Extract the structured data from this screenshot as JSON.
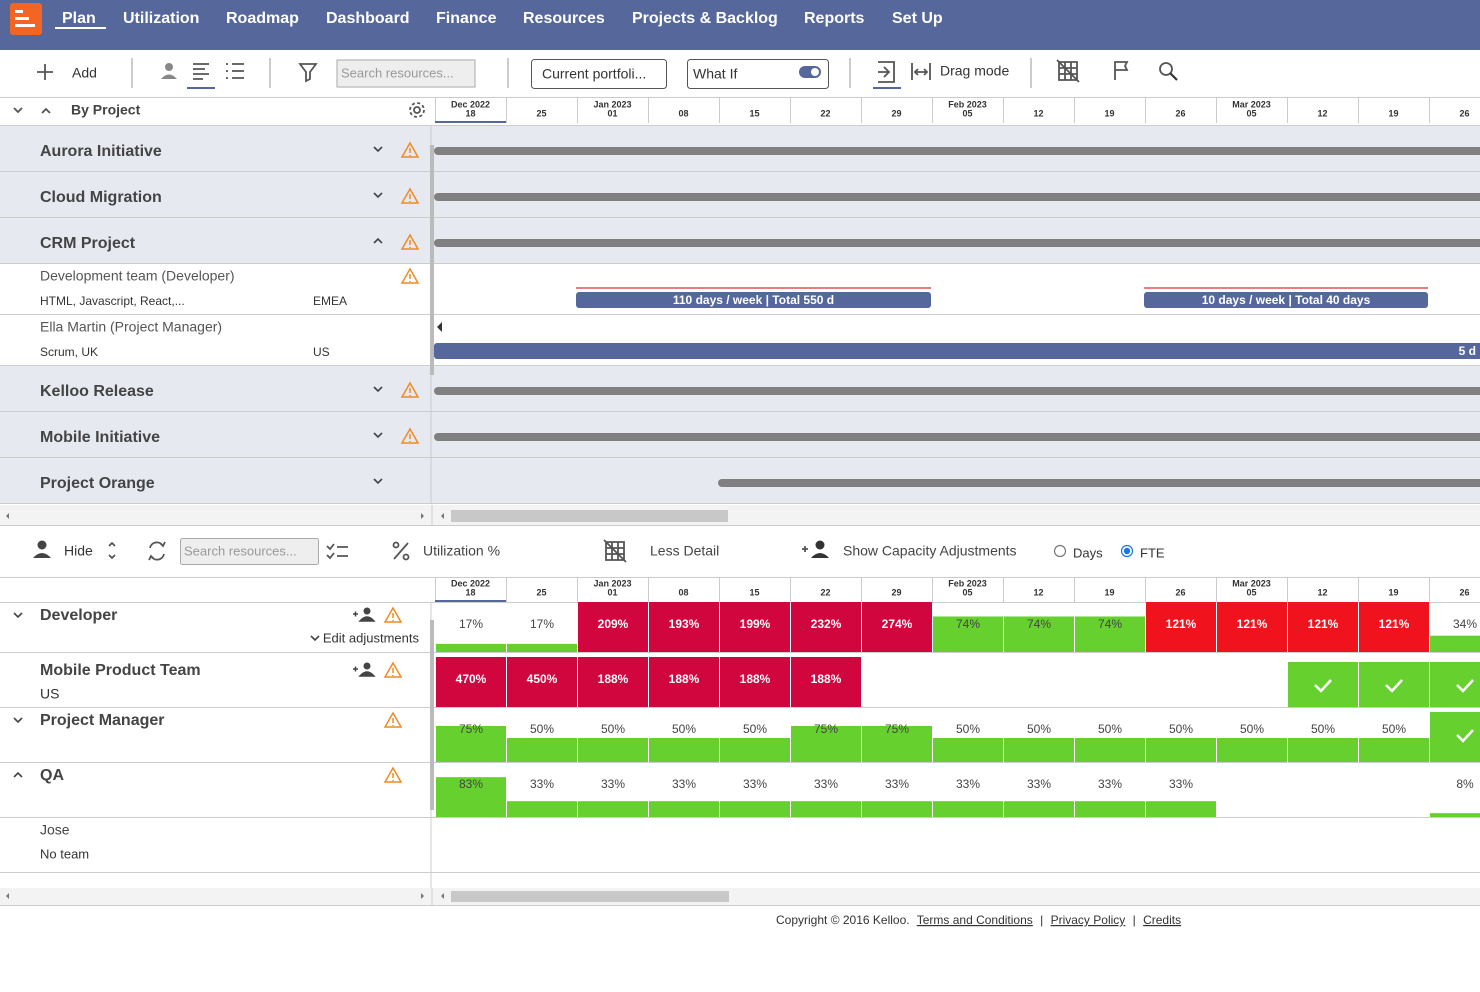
{
  "nav": {
    "items": [
      "Plan",
      "Utilization",
      "Roadmap",
      "Dashboard",
      "Finance",
      "Resources",
      "Projects & Backlog",
      "Reports",
      "Set Up"
    ]
  },
  "toolbar": {
    "add": "Add",
    "search": "Search resources...",
    "portfolio": "Current portfoli...",
    "what_if": "What If",
    "drag_mode": "Drag mode"
  },
  "timeline": {
    "columns": [
      {
        "month": "Dec 2022",
        "day": "18"
      },
      {
        "day": "25"
      },
      {
        "month": "Jan 2023",
        "day": "01"
      },
      {
        "day": "08"
      },
      {
        "day": "15"
      },
      {
        "day": "22"
      },
      {
        "day": "29"
      },
      {
        "month": "Feb 2023",
        "day": "05"
      },
      {
        "day": "12"
      },
      {
        "day": "19"
      },
      {
        "day": "26"
      },
      {
        "month": "Mar 2023",
        "day": "05"
      },
      {
        "day": "12"
      },
      {
        "day": "19"
      },
      {
        "day": "26"
      }
    ]
  },
  "projects_panel": {
    "group_by": "By Project",
    "projects": [
      {
        "name": "Aurora Initiative",
        "expanded": false,
        "warning": true
      },
      {
        "name": "Cloud Migration",
        "expanded": false,
        "warning": true
      },
      {
        "name": "CRM Project",
        "expanded": true,
        "warning": true,
        "resources": [
          {
            "name": "Development team (Developer)",
            "skills": "HTML, Javascript, React,...",
            "region": "EMEA",
            "warning": true,
            "allocations": [
              {
                "label": "110 days / week | Total 550 d"
              },
              {
                "label": "10 days / week | Total 40 days"
              }
            ]
          },
          {
            "name": "Ella Martin (Project Manager)",
            "skills": "Scrum, UK",
            "region": "US",
            "warning": false,
            "allocations": [
              {
                "label": "5 d"
              }
            ]
          }
        ]
      },
      {
        "name": "Kelloo Release",
        "expanded": false,
        "warning": true
      },
      {
        "name": "Mobile Initiative",
        "expanded": false,
        "warning": true
      },
      {
        "name": "Project Orange",
        "expanded": false,
        "warning": false
      }
    ]
  },
  "utilization_panel": {
    "hide": "Hide",
    "search": "Search resources...",
    "utilization": "Utilization %",
    "less_detail": "Less Detail",
    "capacity": "Show Capacity Adjustments",
    "units": [
      {
        "label": "Days",
        "selected": false
      },
      {
        "label": "FTE",
        "selected": true
      }
    ],
    "rows": [
      {
        "name": "Developer",
        "chevron": "down",
        "add_person": true,
        "warning": true,
        "note": "Edit adjustments",
        "cells": [
          {
            "label": "17%",
            "state": "ok"
          },
          {
            "label": "17%",
            "state": "ok"
          },
          {
            "label": "209%",
            "state": "over"
          },
          {
            "label": "193%",
            "state": "over"
          },
          {
            "label": "199%",
            "state": "over"
          },
          {
            "label": "232%",
            "state": "over"
          },
          {
            "label": "274%",
            "state": "over"
          },
          {
            "label": "74%",
            "state": "ok"
          },
          {
            "label": "74%",
            "state": "ok"
          },
          {
            "label": "74%",
            "state": "ok"
          },
          {
            "label": "121%",
            "state": "high"
          },
          {
            "label": "121%",
            "state": "high"
          },
          {
            "label": "121%",
            "state": "high"
          },
          {
            "label": "121%",
            "state": "high"
          },
          {
            "label": "34%",
            "state": "ok"
          }
        ]
      },
      {
        "name": "Mobile Product Team",
        "subtitle": "US",
        "add_person": true,
        "warning": true,
        "cells": [
          {
            "label": "470%",
            "state": "over"
          },
          {
            "label": "450%",
            "state": "over"
          },
          {
            "label": "188%",
            "state": "over"
          },
          {
            "label": "188%",
            "state": "over"
          },
          {
            "label": "188%",
            "state": "over"
          },
          {
            "label": "188%",
            "state": "over"
          },
          {
            "state": "none"
          },
          {
            "state": "none"
          },
          {
            "state": "none"
          },
          {
            "state": "none"
          },
          {
            "state": "none"
          },
          {
            "state": "none"
          },
          {
            "state": "check"
          },
          {
            "state": "check"
          },
          {
            "state": "check"
          }
        ]
      },
      {
        "name": "Project Manager",
        "chevron": "down",
        "warning": true,
        "cells": [
          {
            "label": "75%",
            "state": "ok"
          },
          {
            "label": "50%",
            "state": "ok"
          },
          {
            "label": "50%",
            "state": "ok"
          },
          {
            "label": "50%",
            "state": "ok"
          },
          {
            "label": "50%",
            "state": "ok"
          },
          {
            "label": "75%",
            "state": "ok"
          },
          {
            "label": "75%",
            "state": "ok"
          },
          {
            "label": "50%",
            "state": "ok"
          },
          {
            "label": "50%",
            "state": "ok"
          },
          {
            "label": "50%",
            "state": "ok"
          },
          {
            "label": "50%",
            "state": "ok"
          },
          {
            "label": "50%",
            "state": "ok"
          },
          {
            "label": "50%",
            "state": "ok"
          },
          {
            "label": "50%",
            "state": "ok"
          },
          {
            "state": "check"
          }
        ]
      },
      {
        "name": "QA",
        "chevron": "up",
        "warning": true,
        "cells": [
          {
            "label": "83%",
            "state": "ok"
          },
          {
            "label": "33%",
            "state": "ok"
          },
          {
            "label": "33%",
            "state": "ok"
          },
          {
            "label": "33%",
            "state": "ok"
          },
          {
            "label": "33%",
            "state": "ok"
          },
          {
            "label": "33%",
            "state": "ok"
          },
          {
            "label": "33%",
            "state": "ok"
          },
          {
            "label": "33%",
            "state": "ok"
          },
          {
            "label": "33%",
            "state": "ok"
          },
          {
            "label": "33%",
            "state": "ok"
          },
          {
            "label": "33%",
            "state": "ok"
          },
          {
            "state": "none"
          },
          {
            "state": "none"
          },
          {
            "state": "none"
          },
          {
            "label": "8%",
            "state": "ok"
          }
        ]
      },
      {
        "name": "Jose",
        "subtitle": "No team",
        "member": true,
        "cells": []
      }
    ]
  },
  "footer": {
    "copyright": "Copyright © 2016 Kelloo.",
    "separator": "|",
    "links": [
      "Terms and Conditions",
      "Privacy Policy",
      "Credits"
    ]
  }
}
